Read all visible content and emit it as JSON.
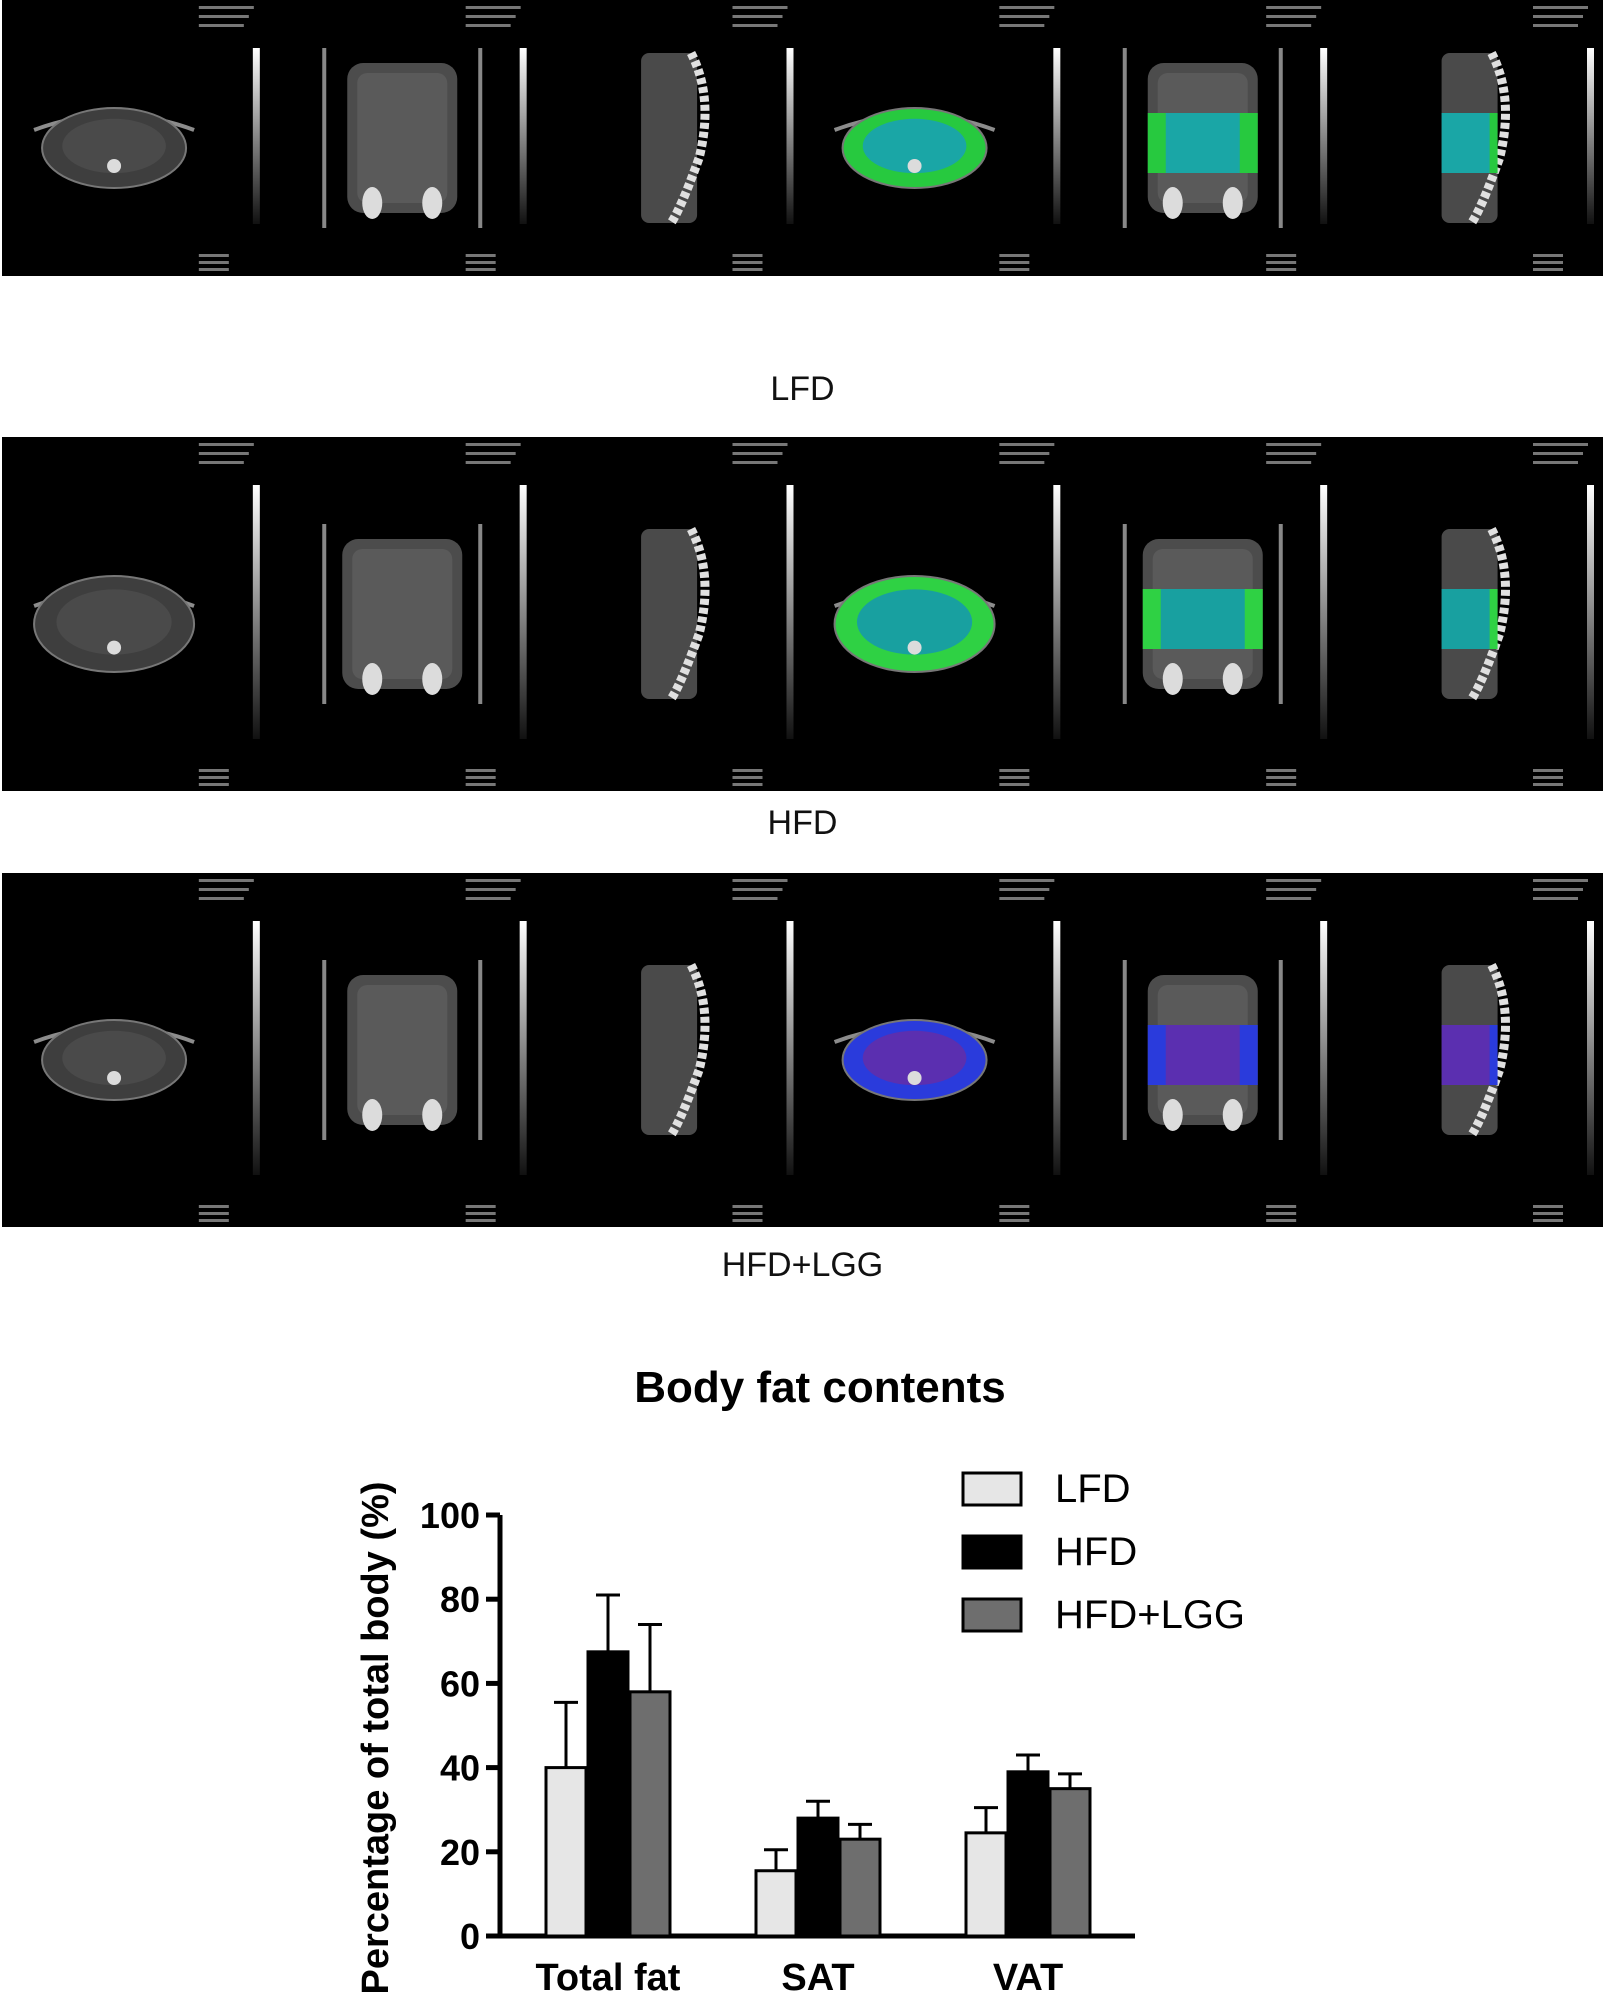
{
  "panels": [
    {
      "label": "LFD",
      "mask_color": "#27c93f",
      "inner_color": "#1aa6a6",
      "mask_size": "medium"
    },
    {
      "label": "HFD",
      "mask_color": "#2fd144",
      "inner_color": "#18a0a0",
      "mask_size": "large"
    },
    {
      "label": "HFD+LGG",
      "mask_color": "#2a3bdc",
      "inner_color": "#5b2fb0",
      "mask_size": "medium"
    }
  ],
  "chart_data": {
    "type": "bar",
    "title": "Body fat contents",
    "ylabel": "Percentage of total body (%)",
    "xlabel": "",
    "categories": [
      "Total fat",
      "SAT",
      "VAT"
    ],
    "ylim": [
      0,
      100
    ],
    "yticks": [
      "0",
      "20",
      "40",
      "60",
      "80",
      "100"
    ],
    "grid": false,
    "legend_position": "top-right",
    "series": [
      {
        "name": "LFD",
        "color": "#e6e6e6",
        "values": [
          40,
          15.5,
          24.5
        ],
        "errors": [
          15.5,
          5,
          6
        ]
      },
      {
        "name": "HFD",
        "color": "#000000",
        "values": [
          67.5,
          28,
          39
        ],
        "errors": [
          13.5,
          4,
          4
        ]
      },
      {
        "name": "HFD+LGG",
        "color": "#6e6e6e",
        "values": [
          58,
          23,
          35
        ],
        "errors": [
          16,
          3.5,
          3.5
        ]
      }
    ]
  }
}
